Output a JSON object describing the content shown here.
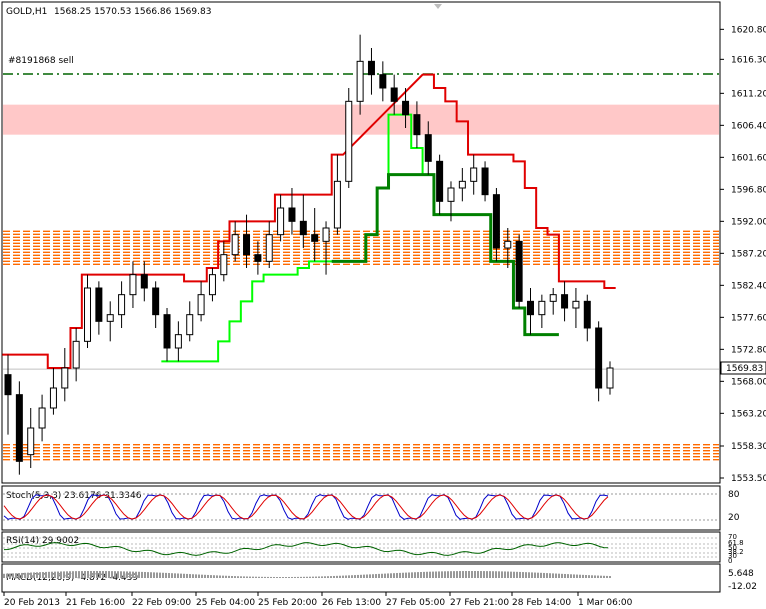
{
  "header": {
    "symbol_title": "GOLD,H1",
    "ohlc": "1568.25 1570.53 1566.86 1569.83"
  },
  "order_label": "#8191868 sell",
  "current_price_label": "1569.83",
  "colors": {
    "line_red": "#e00000",
    "line_green": "#00ff00",
    "line_dark_green": "#008000",
    "zone_pink": "#ffc8c8",
    "dash_orange": "#ff6a00"
  },
  "chart_data": {
    "type": "candlestick",
    "y_min": 1553.5,
    "y_max": 1622.5,
    "price_ticks": [
      1620.8,
      1616.3,
      1611.2,
      1606.4,
      1601.6,
      1596.8,
      1592.0,
      1587.2,
      1582.4,
      1577.6,
      1572.8,
      1568.0,
      1563.2,
      1558.3,
      1553.5
    ],
    "x_labels": [
      "20 Feb 2013",
      "21 Feb 16:00",
      "22 Feb 09:00",
      "25 Feb 04:00",
      "25 Feb 20:00",
      "26 Feb 13:00",
      "27 Feb 05:00",
      "27 Feb 21:00",
      "28 Feb 14:00",
      "1 Mar 06:00"
    ],
    "candles": [
      [
        1569,
        1572,
        1560,
        1566
      ],
      [
        1566,
        1568,
        1554,
        1556
      ],
      [
        1557,
        1564,
        1555,
        1561
      ],
      [
        1561,
        1566,
        1559,
        1564
      ],
      [
        1564,
        1570,
        1563,
        1567
      ],
      [
        1567,
        1573,
        1565,
        1570
      ],
      [
        1570,
        1576,
        1568,
        1574
      ],
      [
        1574,
        1584,
        1573,
        1582
      ],
      [
        1582,
        1583,
        1575,
        1577
      ],
      [
        1577,
        1580,
        1574,
        1578
      ],
      [
        1578,
        1583,
        1576,
        1581
      ],
      [
        1581,
        1586,
        1579,
        1584
      ],
      [
        1584,
        1586,
        1580,
        1582
      ],
      [
        1582,
        1583,
        1576,
        1578
      ],
      [
        1578,
        1579,
        1571,
        1573
      ],
      [
        1573,
        1577,
        1571,
        1575
      ],
      [
        1575,
        1580,
        1574,
        1578
      ],
      [
        1578,
        1583,
        1577,
        1581
      ],
      [
        1581,
        1585,
        1580,
        1584
      ],
      [
        1584,
        1589,
        1583,
        1587
      ],
      [
        1587,
        1592,
        1586,
        1590
      ],
      [
        1590,
        1593,
        1585,
        1587
      ],
      [
        1587,
        1589,
        1584,
        1586
      ],
      [
        1586,
        1592,
        1585,
        1590
      ],
      [
        1590,
        1596,
        1589,
        1594
      ],
      [
        1594,
        1597,
        1590,
        1592
      ],
      [
        1592,
        1596,
        1588,
        1590
      ],
      [
        1590,
        1594,
        1586,
        1589
      ],
      [
        1589,
        1592,
        1584,
        1591
      ],
      [
        1591,
        1602,
        1590,
        1598
      ],
      [
        1598,
        1612,
        1597,
        1610
      ],
      [
        1610,
        1620,
        1608,
        1616
      ],
      [
        1616,
        1618,
        1611,
        1614
      ],
      [
        1614,
        1616,
        1610,
        1612
      ],
      [
        1612,
        1614,
        1608,
        1610
      ],
      [
        1610,
        1612,
        1606,
        1608
      ],
      [
        1608,
        1610,
        1603,
        1605
      ],
      [
        1605,
        1607,
        1599,
        1601
      ],
      [
        1601,
        1602,
        1593,
        1595
      ],
      [
        1595,
        1598,
        1592,
        1597
      ],
      [
        1597,
        1600,
        1595,
        1598
      ],
      [
        1598,
        1602,
        1596,
        1600
      ],
      [
        1600,
        1601,
        1595,
        1596
      ],
      [
        1596,
        1597,
        1586,
        1588
      ],
      [
        1588,
        1591,
        1585,
        1589
      ],
      [
        1589,
        1590,
        1579,
        1580
      ],
      [
        1580,
        1582,
        1575,
        1578
      ],
      [
        1578,
        1581,
        1576,
        1580
      ],
      [
        1580,
        1582,
        1578,
        1581
      ],
      [
        1581,
        1583,
        1577,
        1579
      ],
      [
        1579,
        1582,
        1576,
        1580
      ],
      [
        1580,
        1581,
        1574,
        1576
      ],
      [
        1576,
        1577,
        1565,
        1567
      ],
      [
        1567,
        1571,
        1566,
        1570
      ]
    ],
    "resistance_zone": [
      1605.0,
      1609.5
    ],
    "dashed_zone_upper": [
      1585.5,
      1590.5
    ],
    "dashed_zone_lower": [
      1556.0,
      1558.5
    ],
    "order_line_price": 1614.1,
    "current_price": 1569.83,
    "indicators": {
      "stoch": {
        "label": "Stoch(5,3,3) 23.6176 31.3346",
        "levels": [
          "80",
          "20"
        ]
      },
      "rsi": {
        "label": "RSI(14) 29.9002",
        "levels": [
          "70",
          "61.8",
          "50",
          "38.2",
          "30",
          "0"
        ]
      },
      "macd": {
        "label": "MACD(12,26,9) -4.872 -4.439",
        "levels": [
          "5.648",
          "-12.02"
        ]
      }
    }
  }
}
